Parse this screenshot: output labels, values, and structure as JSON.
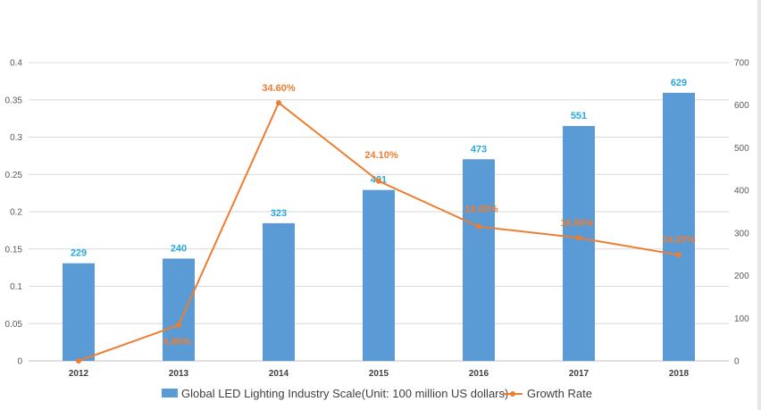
{
  "chart_data": {
    "type": "bar",
    "categories": [
      "2012",
      "2013",
      "2014",
      "2015",
      "2016",
      "2017",
      "2018"
    ],
    "series": [
      {
        "name": "Global LED Lighting Industry Scale(Unit: 100 million US dollars)",
        "type": "bar",
        "axis": "right",
        "values": [
          229,
          240,
          323,
          401,
          473,
          551,
          629
        ],
        "labels": [
          "229",
          "240",
          "323",
          "401",
          "473",
          "551",
          "629"
        ],
        "color": "#5b9bd5"
      },
      {
        "name": "Growth Rate",
        "type": "line",
        "axis": "left",
        "values": [
          0.0,
          0.048,
          0.346,
          0.241,
          0.18,
          0.165,
          0.142
        ],
        "labels": [
          "",
          "4.80%",
          "34.60%",
          "24.10%",
          "18.00%",
          "16.50%",
          "14.20%"
        ],
        "color": "#ed7d31"
      }
    ],
    "left_axis": {
      "ticks": [
        "0",
        "0.05",
        "0.1",
        "0.15",
        "0.2",
        "0.25",
        "0.3",
        "0.35",
        "0.4"
      ],
      "ylim": [
        0,
        0.4
      ]
    },
    "right_axis": {
      "ticks": [
        "0",
        "100",
        "200",
        "300",
        "400",
        "500",
        "600",
        "700"
      ],
      "ylim": [
        0,
        700
      ]
    },
    "legend_position": "bottom",
    "grid": true,
    "colors": {
      "bar_label": "#2aa8d8",
      "gridline": "#d9d9d9"
    }
  }
}
